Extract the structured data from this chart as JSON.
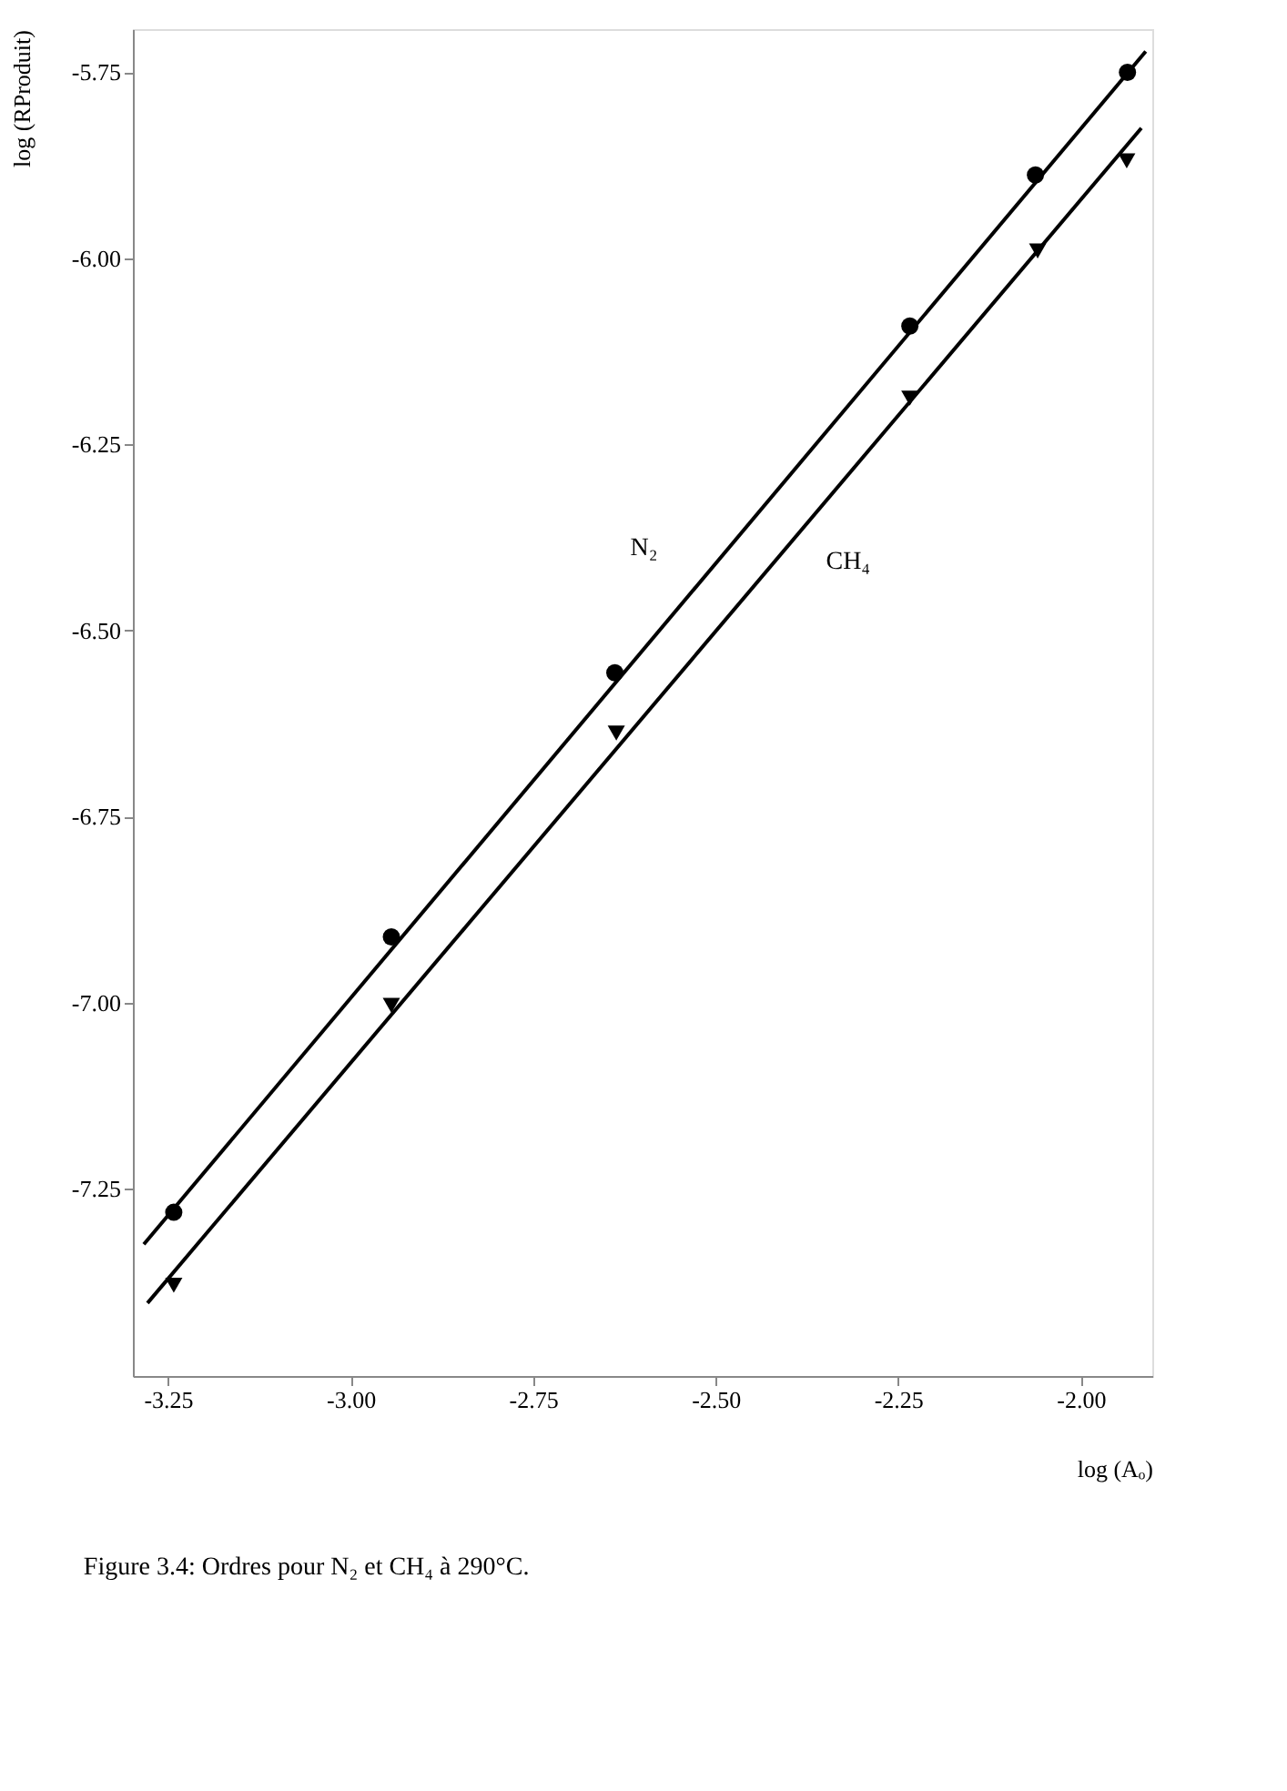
{
  "chart_data": {
    "type": "scatter",
    "xlabel": "log (Aₒ)",
    "ylabel": "log (RProduit)",
    "annotations": [
      "Figure 3.4:    Ordres pour N₂ et CH₄ à 290°C."
    ],
    "xlim": [
      -3.298,
      -1.902
    ],
    "ylim": [
      -7.502,
      -5.692
    ],
    "xticks": [
      -3.25,
      {
        "value": -3,
        "label": "-3.00"
      },
      -2.75,
      {
        "value": -2.5,
        "label": "-2.50"
      },
      -2.25,
      {
        "value": -2,
        "label": "-2.00"
      }
    ],
    "yticks": [
      -7.25,
      {
        "value": -7,
        "label": "-7.00"
      },
      -6.75,
      {
        "value": -6.5,
        "label": "-6.50"
      },
      -6.25,
      {
        "value": -6,
        "label": "-6.00"
      },
      -5.75
    ],
    "grid": false,
    "series": [
      {
        "color": "#000000",
        "marker": "circle",
        "x": [
          -3.242,
          -2.944,
          -2.638,
          -2.234,
          -2.062,
          -1.936
        ],
        "values": [
          -7.282,
          -6.912,
          -6.557,
          -6.091,
          -5.888,
          -5.75
        ]
      },
      {
        "color": "#000000",
        "marker": "triangle",
        "x": [
          -3.242,
          -2.944,
          -2.636,
          -2.234,
          -2.059,
          -1.937
        ],
        "values": [
          -7.38,
          -7.004,
          -6.638,
          -6.188,
          -5.99,
          -5.869
        ]
      },
      {
        "type": "line",
        "name": "N₂",
        "color": "#000000",
        "line_style": "solid",
        "x": [
          -3.283,
          -1.911
        ],
        "values": [
          -7.325,
          -5.722
        ]
      },
      {
        "type": "line",
        "name": "CH₄",
        "color": "#000000",
        "line_style": "solid",
        "x": [
          -3.278,
          -1.917
        ],
        "values": [
          -7.404,
          -5.825
        ]
      }
    ]
  }
}
